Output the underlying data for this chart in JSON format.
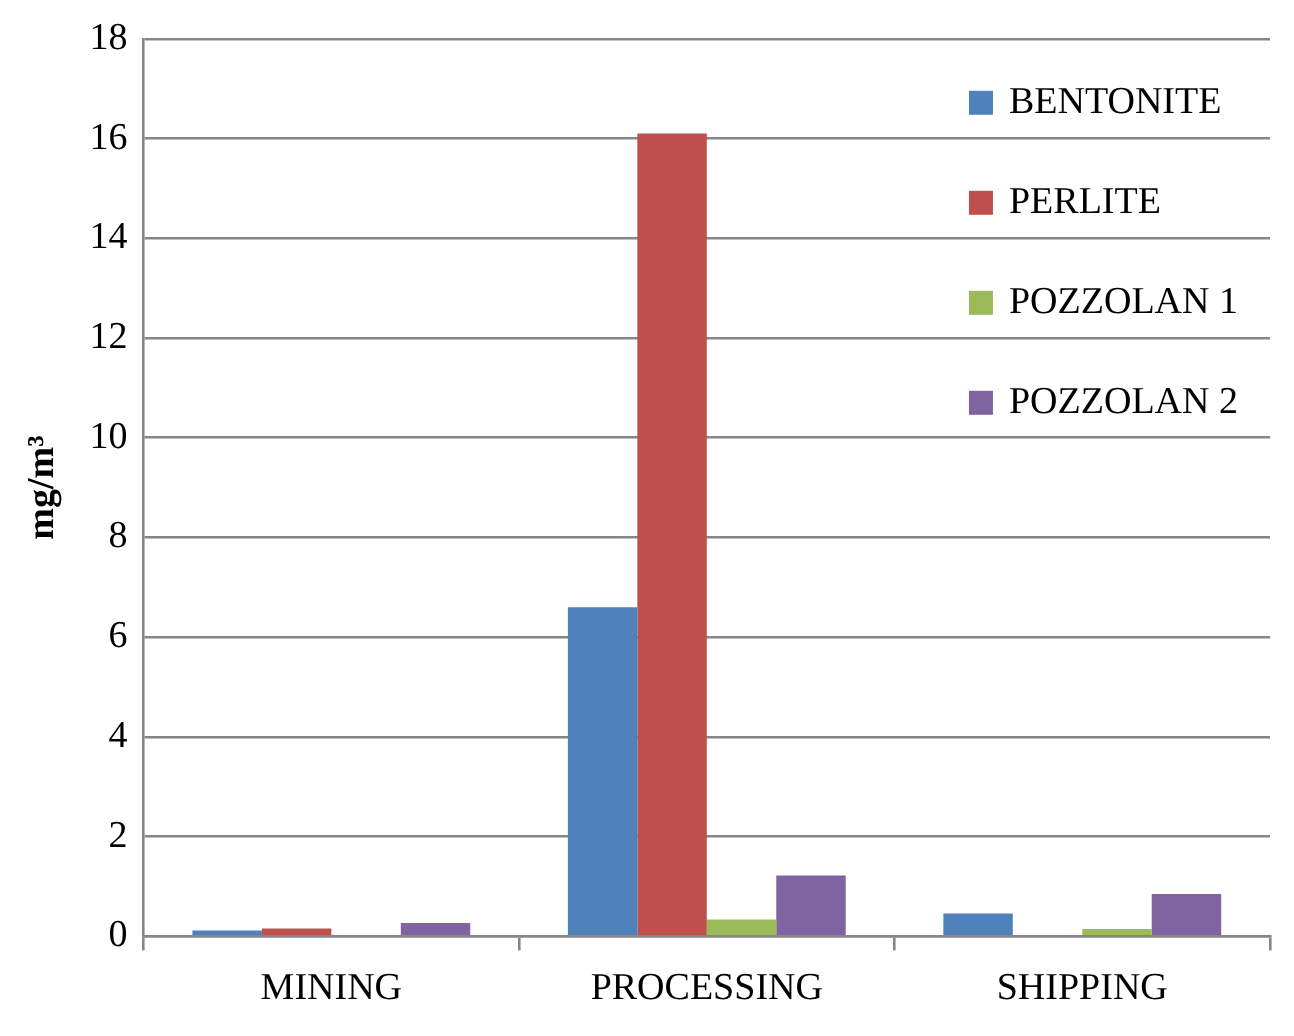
{
  "chart_data": {
    "type": "bar",
    "ylabel": "mg/m³",
    "categories": [
      "MINING",
      "PROCESSING",
      "SHIPPING"
    ],
    "series": [
      {
        "name": "BENTONITE",
        "color": "#4f81bd",
        "values": [
          0.12,
          6.6,
          0.46
        ]
      },
      {
        "name": "PERLITE",
        "color": "#c0504d",
        "values": [
          0.16,
          16.1,
          0
        ]
      },
      {
        "name": "POZZOLAN 1",
        "color": "#9bbb59",
        "values": [
          null,
          0.34,
          0.15
        ]
      },
      {
        "name": "POZZOLAN 2",
        "color": "#8064a2",
        "values": [
          0.27,
          1.22,
          0.85
        ]
      }
    ],
    "ylim": [
      0,
      18
    ],
    "yticks": [
      0,
      2,
      4,
      6,
      8,
      10,
      12,
      14,
      16,
      18
    ],
    "grid": "y",
    "legend": "top right"
  }
}
